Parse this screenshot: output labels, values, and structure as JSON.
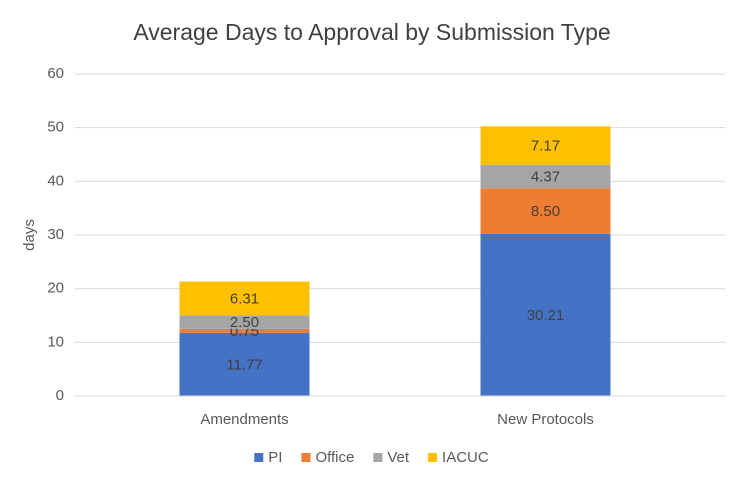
{
  "chart_data": {
    "type": "stacked_bar",
    "title": "Average Days to Approval by Submission Type",
    "y_label": "days",
    "categories": [
      "Amendments",
      "New Protocols"
    ],
    "series": [
      {
        "name": "PI",
        "color": "#4472c4",
        "values": [
          11.77,
          30.21
        ],
        "value_labels": [
          "11.77",
          "30.21"
        ]
      },
      {
        "name": "Office",
        "color": "#ed7d31",
        "values": [
          0.75,
          8.5
        ],
        "value_labels": [
          "0.75",
          "8.50"
        ]
      },
      {
        "name": "Vet",
        "color": "#a5a5a5",
        "values": [
          2.5,
          4.37
        ],
        "value_labels": [
          "2.50",
          "4.37"
        ]
      },
      {
        "name": "IACUC",
        "color": "#ffc000",
        "values": [
          6.31,
          7.17
        ],
        "value_labels": [
          "6.31",
          "7.17"
        ]
      }
    ],
    "ylim": [
      0,
      60
    ],
    "yticks": [
      0,
      10,
      20,
      30,
      40,
      50,
      60
    ],
    "grid": true,
    "legend": "bottom"
  }
}
